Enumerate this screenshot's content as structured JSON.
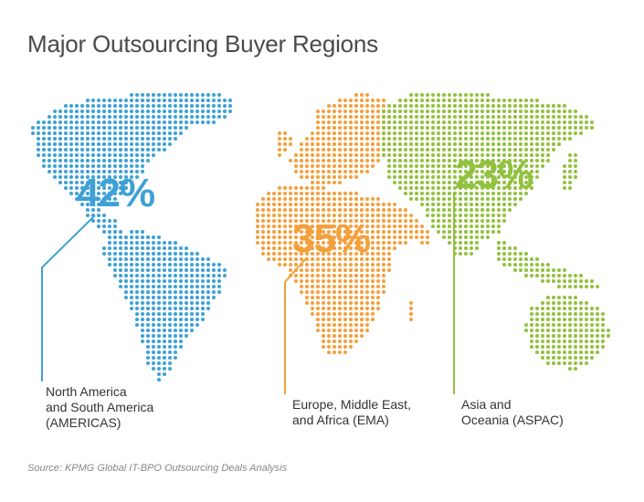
{
  "title": "Major Outsourcing Buyer Regions",
  "colors": {
    "americas": "#3ea1d6",
    "ema": "#f3a03d",
    "aspac": "#92c13f"
  },
  "regions": [
    {
      "key": "americas",
      "percent": "42%",
      "value": 42,
      "label_lines": [
        "North America",
        "and South America",
        "(AMERICAS)"
      ]
    },
    {
      "key": "ema",
      "percent": "35%",
      "value": 35,
      "label_lines": [
        "Europe, Middle East,",
        "and Africa (EMA)"
      ]
    },
    {
      "key": "aspac",
      "percent": "23%",
      "value": 23,
      "label_lines": [
        "Asia and",
        "Oceania (ASPAC)"
      ]
    }
  ],
  "source": "Source: KPMG Global IT-BPO Outsourcing Deals Analysis"
}
